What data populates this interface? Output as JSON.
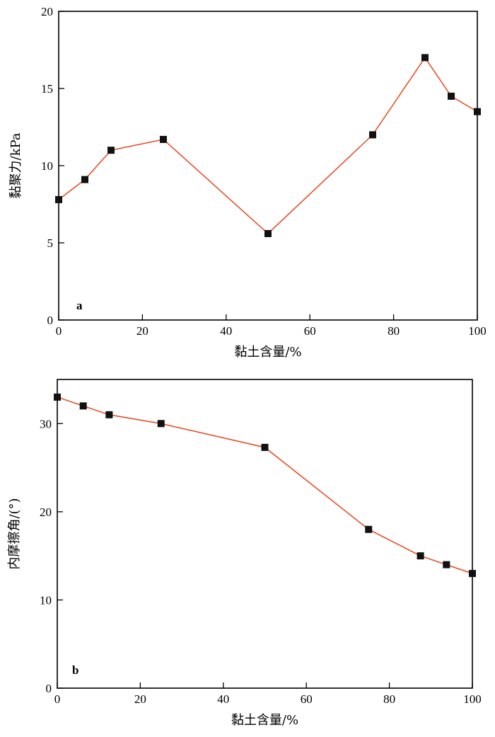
{
  "colors": {
    "line": "#e8502a",
    "marker": "#111111",
    "axis": "#000000"
  },
  "chart_data": [
    {
      "type": "line",
      "panel_label": "a",
      "xlabel": "黏土含量/%",
      "ylabel": "黏聚力/kPa",
      "xlim": [
        0,
        100
      ],
      "ylim": [
        0,
        20
      ],
      "xticks": [
        "0",
        "20",
        "40",
        "60",
        "80",
        "100"
      ],
      "yticks": [
        "0",
        "5",
        "10",
        "15",
        "20"
      ],
      "grid": false,
      "series": [
        {
          "x": [
            0,
            6.25,
            12.5,
            25,
            50,
            75,
            87.5,
            93.75,
            100
          ],
          "values": [
            7.8,
            9.1,
            11.0,
            11.7,
            5.6,
            12.0,
            17.0,
            14.5,
            13.5
          ]
        }
      ]
    },
    {
      "type": "line",
      "panel_label": "b",
      "xlabel": "黏土含量/%",
      "ylabel": "内摩擦角/(°)",
      "xlim": [
        0,
        100
      ],
      "ylim": [
        0,
        35
      ],
      "xticks": [
        "0",
        "20",
        "40",
        "60",
        "80",
        "100"
      ],
      "yticks": [
        "0",
        "10",
        "20",
        "30"
      ],
      "grid": false,
      "series": [
        {
          "x": [
            0,
            6.25,
            12.5,
            25,
            50,
            75,
            87.5,
            93.75,
            100
          ],
          "values": [
            33.0,
            32.0,
            31.0,
            30.0,
            27.3,
            18.0,
            15.0,
            14.0,
            13.0
          ]
        }
      ]
    }
  ]
}
